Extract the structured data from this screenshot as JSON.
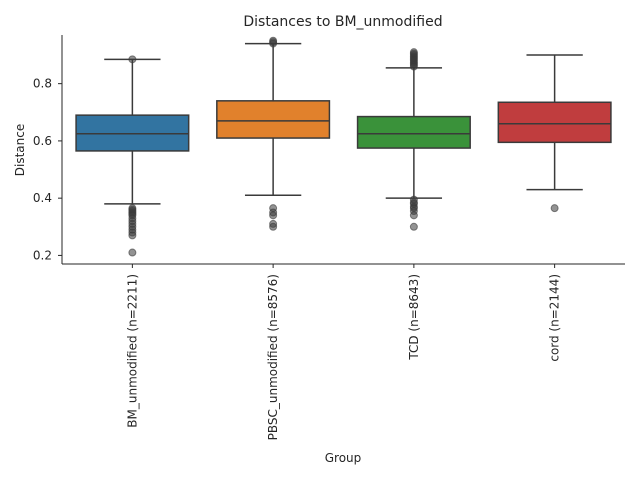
{
  "chart_data": {
    "type": "box",
    "title": "Distances to BM_unmodified",
    "xlabel": "Group",
    "ylabel": "Distance",
    "ylim": [
      0.17,
      0.97
    ],
    "yticks": [
      0.2,
      0.4,
      0.6,
      0.8
    ],
    "grid": false,
    "legend": "none",
    "categories": [
      "BM_unmodified (n=2211)",
      "PBSC_unmodified (n=8576)",
      "TCD (n=8643)",
      "cord (n=2144)"
    ],
    "boxes": [
      {
        "label": "BM_unmodified (n=2211)",
        "color": "#3274a1",
        "whisker_low": 0.38,
        "q1": 0.565,
        "median": 0.625,
        "q3": 0.69,
        "whisker_high": 0.885,
        "outliers": [
          0.21,
          0.27,
          0.28,
          0.29,
          0.3,
          0.31,
          0.32,
          0.33,
          0.34,
          0.345,
          0.35,
          0.355,
          0.36,
          0.365,
          0.885
        ]
      },
      {
        "label": "PBSC_unmodified (n=8576)",
        "color": "#e1812c",
        "whisker_low": 0.41,
        "q1": 0.61,
        "median": 0.67,
        "q3": 0.74,
        "whisker_high": 0.94,
        "outliers": [
          0.3,
          0.31,
          0.34,
          0.35,
          0.365,
          0.94,
          0.945,
          0.95
        ]
      },
      {
        "label": "TCD (n=8643)",
        "color": "#3a923a",
        "whisker_low": 0.4,
        "q1": 0.575,
        "median": 0.625,
        "q3": 0.685,
        "whisker_high": 0.855,
        "outliers": [
          0.3,
          0.34,
          0.355,
          0.365,
          0.37,
          0.38,
          0.385,
          0.395,
          0.86,
          0.865,
          0.87,
          0.875,
          0.88,
          0.885,
          0.89,
          0.895,
          0.9,
          0.905,
          0.91
        ]
      },
      {
        "label": "cord (n=2144)",
        "color": "#c03d3e",
        "whisker_low": 0.43,
        "q1": 0.595,
        "median": 0.66,
        "q3": 0.735,
        "whisker_high": 0.9,
        "outliers": [
          0.365
        ]
      }
    ]
  }
}
